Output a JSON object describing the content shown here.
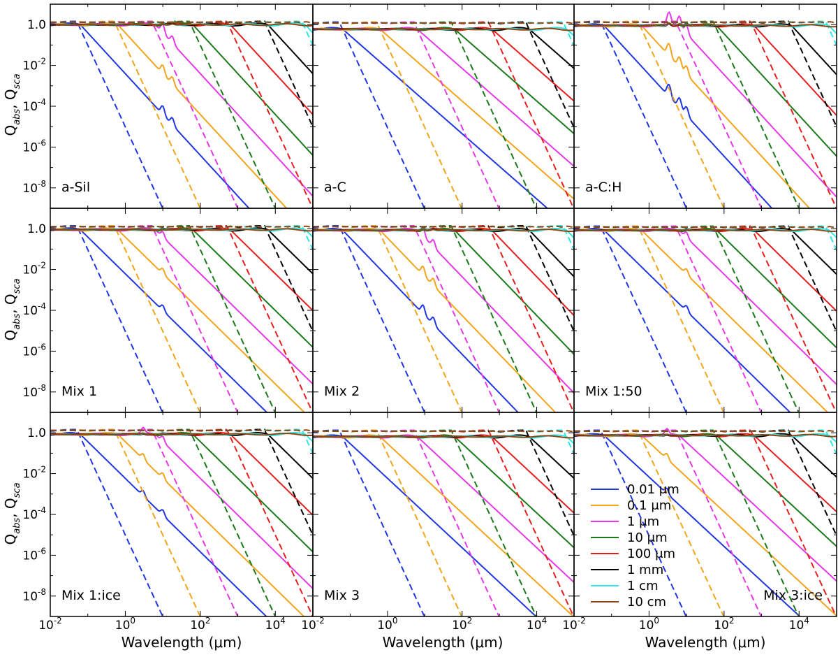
{
  "figure": {
    "x_axis_label": "Wavelength (μm)",
    "y_axis_label": "Q_abs, Q_sca",
    "y_label_parts": {
      "q1": "Q",
      "sub1": "abs",
      "comma": ", ",
      "q2": "Q",
      "sub2": "sca"
    },
    "x_tick_labels": [
      {
        "base": "10",
        "exp": "-2"
      },
      {
        "base": "10",
        "exp": "0"
      },
      {
        "base": "10",
        "exp": "2"
      },
      {
        "base": "10",
        "exp": "4"
      }
    ],
    "y_tick_labels": [
      {
        "base": "1",
        "exp": "",
        "text": "1.0"
      },
      {
        "base": "10",
        "exp": "-2"
      },
      {
        "base": "10",
        "exp": "-4"
      },
      {
        "base": "10",
        "exp": "-6"
      },
      {
        "base": "10",
        "exp": "-8"
      }
    ],
    "legend": [
      {
        "label": "0.01 μm",
        "color": "#1f36e0"
      },
      {
        "label": "0.1 μm",
        "color": "#f2a51a"
      },
      {
        "label": "1 μm",
        "color": "#e638e6"
      },
      {
        "label": "10 μm",
        "color": "#1a7a1a"
      },
      {
        "label": "100 μm",
        "color": "#e61e1e"
      },
      {
        "label": "1 mm",
        "color": "#000000"
      },
      {
        "label": "1 cm",
        "color": "#2ee6e6"
      },
      {
        "label": "10 cm",
        "color": "#8b4513"
      }
    ]
  },
  "chart_data": {
    "type": "line",
    "x_scale": "log",
    "y_scale": "log",
    "xlim": [
      0.01,
      100000
    ],
    "ylim": [
      1e-09,
      10
    ],
    "xlabel": "Wavelength (μm)",
    "ylabel": "Q_abs, Q_sca",
    "line_styles": {
      "solid": "Q_abs",
      "dashed": "Q_sca"
    },
    "legend_location": "lower-left of bottom-right panel",
    "grain_sizes_um": [
      0.01,
      0.1,
      1,
      10,
      100,
      1000,
      10000,
      100000
    ],
    "panels": [
      {
        "name": "a-Sil",
        "features": [
          {
            "at_um": 10,
            "depth": 0.2
          },
          {
            "at_um": 18,
            "depth": 0.15
          }
        ],
        "flat_level": 1.0,
        "long_wavelength_slope": 2.0,
        "scatter_peak": 1.3
      },
      {
        "name": "a-C",
        "features": [],
        "flat_level": 0.6,
        "long_wavelength_slope": 1.6,
        "scatter_peak": 1.2
      },
      {
        "name": "a-C:H",
        "features": [
          {
            "at_um": 3.4,
            "depth": 0.35
          },
          {
            "at_um": 6.5,
            "depth": 0.25
          },
          {
            "at_um": 10,
            "depth": 0.2
          }
        ],
        "flat_level": 0.9,
        "long_wavelength_slope": 2.0,
        "scatter_peak": 1.3
      },
      {
        "name": "Mix 1",
        "features": [
          {
            "at_um": 10,
            "depth": 0.1
          }
        ],
        "flat_level": 0.9,
        "long_wavelength_slope": 1.8,
        "scatter_peak": 1.25
      },
      {
        "name": "Mix 2",
        "features": [
          {
            "at_um": 9,
            "depth": 0.2
          },
          {
            "at_um": 17,
            "depth": 0.15
          }
        ],
        "flat_level": 0.85,
        "long_wavelength_slope": 1.9,
        "scatter_peak": 1.25
      },
      {
        "name": "Mix 1:50",
        "features": [
          {
            "at_um": 10,
            "depth": 0.1
          }
        ],
        "flat_level": 0.85,
        "long_wavelength_slope": 1.8,
        "scatter_peak": 1.2
      },
      {
        "name": "Mix 1:ice",
        "features": [
          {
            "at_um": 3,
            "depth": 0.1
          },
          {
            "at_um": 10,
            "depth": 0.1
          }
        ],
        "flat_level": 0.85,
        "long_wavelength_slope": 1.8,
        "scatter_peak": 1.3
      },
      {
        "name": "Mix 3",
        "features": [],
        "flat_level": 0.65,
        "long_wavelength_slope": 1.7,
        "scatter_peak": 1.2
      },
      {
        "name": "Mix 3:ice",
        "features": [
          {
            "at_um": 3,
            "depth": 0.1
          }
        ],
        "flat_level": 0.75,
        "long_wavelength_slope": 1.7,
        "scatter_peak": 1.2
      }
    ]
  }
}
